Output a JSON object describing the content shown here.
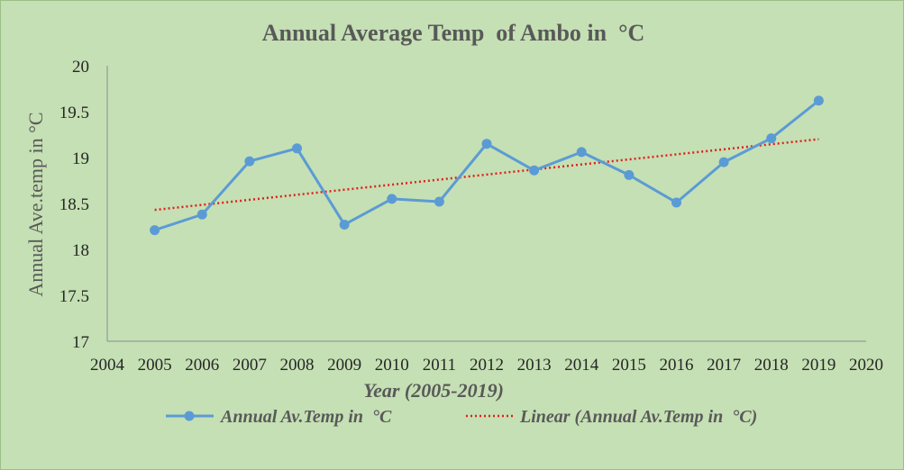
{
  "chart_data": {
    "type": "line",
    "title": "Annual Average Temp  of Ambo in  °C",
    "xlabel": "Year (2005-2019)",
    "ylabel": "Annual Ave.temp in °C",
    "xlim": [
      2004,
      2020
    ],
    "ylim": [
      17,
      20
    ],
    "x_ticks": [
      "2004",
      "2005",
      "2006",
      "2007",
      "2008",
      "2009",
      "2010",
      "2011",
      "2012",
      "2013",
      "2014",
      "2015",
      "2016",
      "2017",
      "2018",
      "2019",
      "2020"
    ],
    "y_ticks": [
      "17",
      "17.5",
      "18",
      "18.5",
      "19",
      "19.5",
      "20"
    ],
    "series": [
      {
        "name": "Annual Av.Temp in  °C",
        "color": "#5b9bd5",
        "x": [
          2005,
          2006,
          2007,
          2008,
          2009,
          2010,
          2011,
          2012,
          2013,
          2014,
          2015,
          2016,
          2017,
          2018,
          2019
        ],
        "values": [
          18.21,
          18.38,
          18.96,
          19.1,
          18.27,
          18.55,
          18.52,
          19.15,
          18.86,
          19.06,
          18.81,
          18.51,
          18.95,
          19.21,
          19.62
        ]
      }
    ],
    "trendline": {
      "name": "Linear (Annual Av.Temp in  °C)",
      "color": "#e02020",
      "x": [
        2005,
        2019
      ],
      "values": [
        18.43,
        19.2
      ]
    },
    "legend_position": "bottom",
    "grid": false
  }
}
